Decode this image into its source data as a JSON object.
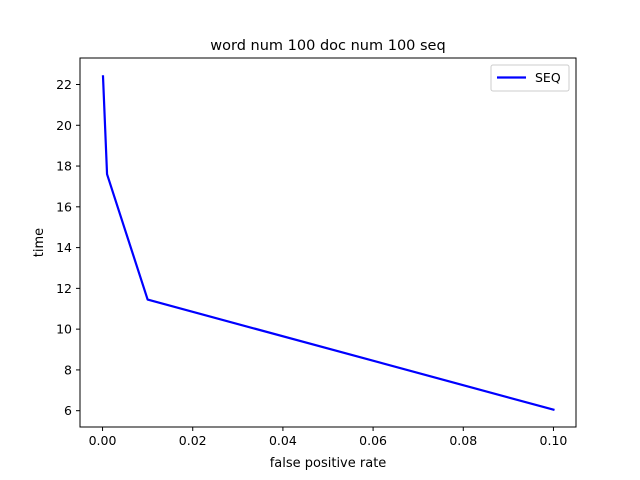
{
  "chart_data": {
    "type": "line",
    "title": "word num 100 doc num 100 seq",
    "xlabel": "false positive rate",
    "ylabel": "time",
    "xlim": [
      -0.005,
      0.105
    ],
    "ylim": [
      5.2,
      23.3
    ],
    "xticks": [
      0.0,
      0.02,
      0.04,
      0.06,
      0.08,
      0.1
    ],
    "xtick_labels": [
      "0.00",
      "0.02",
      "0.04",
      "0.06",
      "0.08",
      "0.10"
    ],
    "yticks": [
      6,
      8,
      10,
      12,
      14,
      16,
      18,
      20,
      22
    ],
    "ytick_labels": [
      "6",
      "8",
      "10",
      "12",
      "14",
      "16",
      "18",
      "20",
      "22"
    ],
    "grid": false,
    "legend": "top-right",
    "series": [
      {
        "name": "SEQ",
        "color": "#0000ff",
        "x": [
          0.0001,
          0.001,
          0.01,
          0.1
        ],
        "y": [
          22.4,
          17.6,
          11.45,
          6.05
        ]
      }
    ]
  }
}
